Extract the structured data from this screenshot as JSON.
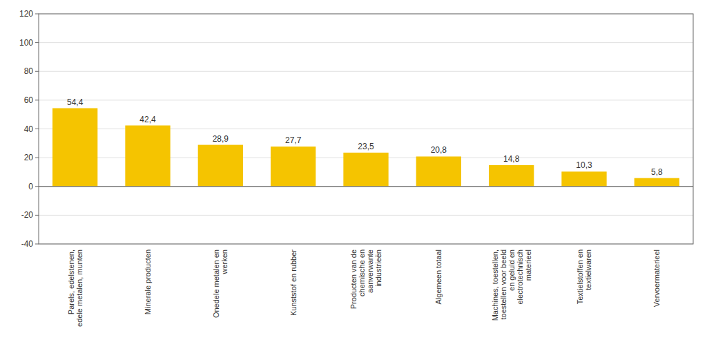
{
  "chart_data": {
    "type": "bar",
    "categories": [
      "Parels, edelstenen,\nedele metalen, munten",
      "Minerale producten",
      "Onedele metalen en\nwerken",
      "Kunststof en rubber",
      "Producten van de\nchemische en\naanverwante\nindustrieën",
      "Algemeen totaal",
      "Machines, toestellen,\ntoestellen voor beeld\nen geluid en\nelectrotechnisch\nmaterieel",
      "Textielstoffen en\ntextielwaren",
      "Vervoermaterieel"
    ],
    "values": [
      54.4,
      42.4,
      28.9,
      27.7,
      23.5,
      20.8,
      14.8,
      10.3,
      5.8
    ],
    "value_labels": [
      "54,4",
      "42,4",
      "28,9",
      "27,7",
      "23,5",
      "20,8",
      "14,8",
      "10,3",
      "5,8"
    ],
    "data_labels": true,
    "color": "#F5C400",
    "ylim": [
      -40,
      120
    ],
    "yticks": [
      -40,
      -20,
      0,
      20,
      40,
      60,
      80,
      100,
      120
    ],
    "grid": true
  }
}
